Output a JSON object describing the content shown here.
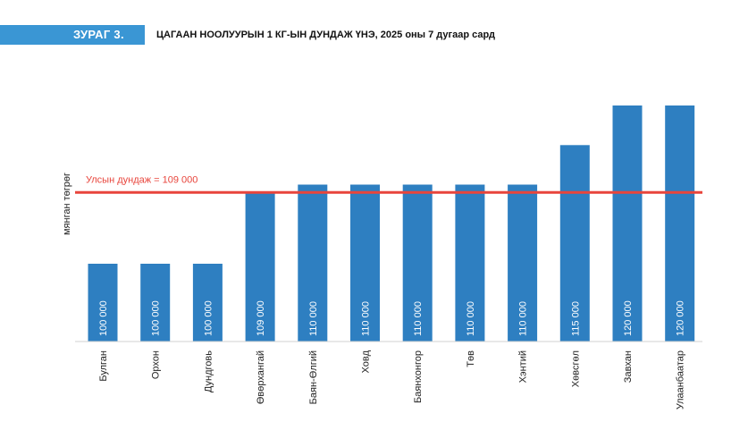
{
  "figure": {
    "label": "ЗУРАГ 3.",
    "title": "ЦАГААН НООЛУУРЫН 1 КГ-ЫН ДУНДАЖ ҮНЭ, 2025 оны 7 дугаар сард"
  },
  "chart_data": {
    "type": "bar",
    "ylabel": "мянган төгрөг",
    "xlabel": "",
    "categories": [
      "Булган",
      "Орхон",
      "Дундговь",
      "Өвөрхангай",
      "Баян-Өлгий",
      "Ховд",
      "Баянхонгор",
      "Төв",
      "Хэнтий",
      "Хөвсгөл",
      "Завхан",
      "Улаанбаатар"
    ],
    "values": [
      100000,
      100000,
      100000,
      109000,
      110000,
      110000,
      110000,
      110000,
      110000,
      115000,
      120000,
      120000
    ],
    "data_labels": [
      "100 000",
      "100 000",
      "100 000",
      "109 000",
      "110 000",
      "110 000",
      "110 000",
      "110 000",
      "110 000",
      "115 000",
      "120 000",
      "120 000"
    ],
    "reference_line": {
      "value": 109000,
      "label": "Улсын дундаж = 109 000",
      "color": "#e8453c"
    },
    "bar_color": "#2e7fc1",
    "grid": false,
    "legend": "none"
  }
}
